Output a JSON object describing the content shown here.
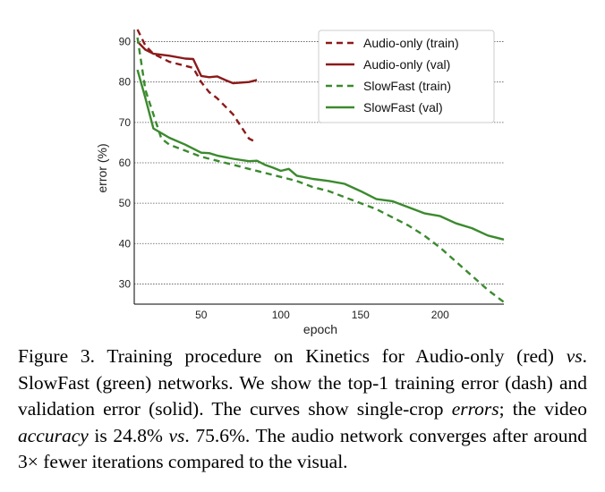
{
  "chart_data": {
    "type": "line",
    "xlabel": "epoch",
    "ylabel": "error (%)",
    "xlim": [
      8,
      240
    ],
    "ylim": [
      25,
      93
    ],
    "xticks": [
      50,
      100,
      150,
      200
    ],
    "yticks": [
      30,
      40,
      50,
      60,
      70,
      80,
      90
    ],
    "grid": "horizontal dotted",
    "legend_position": "top-right",
    "colors": {
      "red": "#8b1a1a",
      "green": "#3b8a2e"
    },
    "series": [
      {
        "name": "Audio-only (train)",
        "color": "red",
        "dash": true,
        "x": [
          10,
          15,
          20,
          30,
          40,
          45,
          50,
          55,
          60,
          70,
          80,
          85
        ],
        "y": [
          93,
          89,
          87,
          85,
          84,
          83.5,
          80,
          77.5,
          76,
          72,
          66,
          65
        ]
      },
      {
        "name": "Audio-only (val)",
        "color": "red",
        "dash": false,
        "x": [
          10,
          15,
          20,
          30,
          40,
          45,
          50,
          55,
          60,
          65,
          70,
          80,
          85
        ],
        "y": [
          90,
          88,
          87,
          86.5,
          85.8,
          85.7,
          81.5,
          81.2,
          81.4,
          80.5,
          79.7,
          80,
          80.5
        ]
      },
      {
        "name": "SlowFast (train)",
        "color": "green",
        "dash": true,
        "x": [
          10,
          15,
          20,
          25,
          30,
          40,
          50,
          60,
          70,
          80,
          90,
          100,
          110,
          120,
          130,
          140,
          150,
          160,
          170,
          180,
          190,
          200,
          210,
          220,
          230,
          240
        ],
        "y": [
          91,
          78,
          72,
          66,
          64.5,
          63,
          61.5,
          60.5,
          59.5,
          58.5,
          57.5,
          56.5,
          55.5,
          54,
          53,
          51.5,
          50,
          48.5,
          46.5,
          44.5,
          42,
          39,
          35.5,
          32,
          28.5,
          25.5
        ]
      },
      {
        "name": "SlowFast (val)",
        "color": "green",
        "dash": false,
        "x": [
          10,
          15,
          20,
          30,
          40,
          45,
          50,
          55,
          60,
          70,
          80,
          85,
          90,
          95,
          100,
          105,
          110,
          120,
          130,
          140,
          150,
          160,
          170,
          180,
          190,
          200,
          210,
          220,
          230,
          240
        ],
        "y": [
          83,
          76,
          68.5,
          66.2,
          64.5,
          63.5,
          62.5,
          62.4,
          61.8,
          61,
          60.4,
          60.5,
          59.5,
          58.8,
          58,
          58.5,
          56.8,
          56,
          55.5,
          54.8,
          53,
          51,
          50.5,
          49,
          47.5,
          46.8,
          45,
          43.8,
          42,
          41
        ]
      }
    ]
  },
  "caption": {
    "label": "Figure 3.",
    "seg1": " Training procedure on Kinetics for Audio-only (red) ",
    "vs1": "vs",
    "seg2": ". SlowFast (green) networks. We show the top-1 training error (dash) and validation error (solid). The curves show single-crop ",
    "errors": "errors",
    "seg3": "; the video ",
    "accuracy": "accuracy",
    "seg4": " is 24.8% ",
    "vs2": "vs",
    "seg5": ". 75.6%. The audio network converges after around 3× fewer iterations compared to the visual."
  }
}
